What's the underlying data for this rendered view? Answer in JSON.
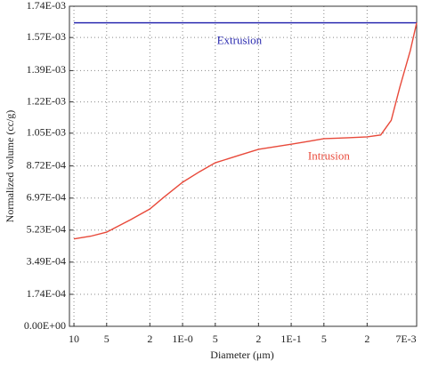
{
  "chart_data": {
    "type": "line",
    "xlabel": "Diameter (μm)",
    "ylabel": "Normalized volume (cc/g)",
    "xscale": "log",
    "xlim": [
      11,
      0.007
    ],
    "ylim": [
      0,
      0.00174
    ],
    "xticks": [
      10,
      5,
      2,
      {
        "value": 1,
        "label": "1E-0"
      },
      {
        "value": 0.5,
        "label": "5"
      },
      {
        "value": 0.2,
        "label": "2"
      },
      {
        "value": 0.1,
        "label": "1E-1"
      },
      {
        "value": 0.05,
        "label": "5"
      },
      {
        "value": 0.02,
        "label": "2"
      },
      {
        "value": 0.007,
        "label": "7E-3"
      }
    ],
    "yticks": [
      {
        "value": 0,
        "label": "0.00E+00"
      },
      {
        "value": 0.000174,
        "label": "1.74E-04"
      },
      {
        "value": 0.000349,
        "label": "3.49E-04"
      },
      {
        "value": 0.000523,
        "label": "5.23E-04"
      },
      {
        "value": 0.000697,
        "label": "6.97E-04"
      },
      {
        "value": 0.000872,
        "label": "8.72E-04"
      },
      {
        "value": 0.00105,
        "label": "1.05E-03"
      },
      {
        "value": 0.00122,
        "label": "1.22E-03"
      },
      {
        "value": 0.00139,
        "label": "1.39E-03"
      },
      {
        "value": 0.00157,
        "label": "1.57E-03"
      },
      {
        "value": 0.00174,
        "label": "1.74E-03"
      }
    ],
    "grid": true,
    "series": [
      {
        "name": "Extrusion",
        "color": "#2b2bb0",
        "x": [
          10,
          0.007
        ],
        "values": [
          0.00165,
          0.00165
        ]
      },
      {
        "name": "Intrusion",
        "color": "#e8493a",
        "x": [
          10,
          7,
          5,
          3,
          2,
          1.5,
          1,
          0.7,
          0.5,
          0.3,
          0.2,
          0.1,
          0.07,
          0.05,
          0.03,
          0.02,
          0.015,
          0.012,
          0.01,
          0.008,
          0.007
        ],
        "values": [
          0.000475,
          0.00049,
          0.000512,
          0.00058,
          0.000638,
          0.0007,
          0.000783,
          0.00084,
          0.000889,
          0.00093,
          0.000962,
          0.00099,
          0.001005,
          0.00102,
          0.001025,
          0.00103,
          0.00104,
          0.00112,
          0.0013,
          0.0015,
          0.00165
        ]
      }
    ],
    "annotations": [
      {
        "text": "Extrusion",
        "x": 0.3,
        "y": 0.00155
      },
      {
        "text": "Intrusion",
        "x": 0.045,
        "y": 0.00092
      }
    ]
  }
}
